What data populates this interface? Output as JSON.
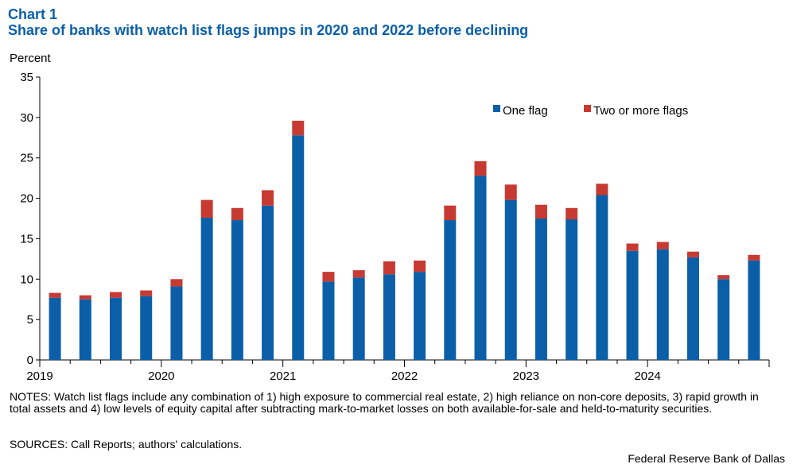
{
  "chart_data": {
    "type": "bar",
    "stacked": true,
    "label": "Chart 1",
    "title": "Share of banks with watch list flags jumps in 2020 and 2022 before declining",
    "ylabel": "Percent",
    "ylim": [
      0,
      35
    ],
    "yticks": [
      0,
      5,
      10,
      15,
      20,
      25,
      30,
      35
    ],
    "x_tick_labels": [
      "2019",
      "2020",
      "2021",
      "2022",
      "2023",
      "2024"
    ],
    "categories": [
      "2019Q1",
      "2019Q2",
      "2019Q3",
      "2019Q4",
      "2020Q1",
      "2020Q2",
      "2020Q3",
      "2020Q4",
      "2021Q1",
      "2021Q2",
      "2021Q3",
      "2021Q4",
      "2022Q1",
      "2022Q2",
      "2022Q3",
      "2022Q4",
      "2023Q1",
      "2023Q2",
      "2023Q3",
      "2023Q4",
      "2024Q1",
      "2024Q2",
      "2024Q3",
      "2024Q4"
    ],
    "series": [
      {
        "name": "One flag",
        "color": "#0b5fa8",
        "values": [
          7.7,
          7.5,
          7.7,
          7.9,
          9.1,
          17.6,
          17.3,
          19.1,
          27.8,
          9.7,
          10.2,
          10.6,
          10.9,
          17.3,
          22.8,
          19.8,
          17.5,
          17.4,
          20.4,
          13.5,
          13.7,
          12.7,
          10.0,
          12.3
        ]
      },
      {
        "name": "Two or more flags",
        "color": "#c73a32",
        "values": [
          0.6,
          0.5,
          0.7,
          0.7,
          0.9,
          2.2,
          1.5,
          1.9,
          1.8,
          1.2,
          0.9,
          1.6,
          1.4,
          1.8,
          1.8,
          1.9,
          1.7,
          1.4,
          1.4,
          0.9,
          0.9,
          0.7,
          0.5,
          0.7
        ]
      }
    ],
    "legend": "top-right",
    "grid": false
  },
  "notes": "NOTES: Watch list flags include any combination of 1) high exposure to commercial real estate, 2) high reliance on non-core deposits, 3) rapid growth in total assets and 4) low levels of equity capital after subtracting mark-to-market losses on both available-for-sale and held-to-maturity securities.",
  "sources": "SOURCES: Call Reports; authors' calculations.",
  "credit": "Federal Reserve Bank of Dallas"
}
